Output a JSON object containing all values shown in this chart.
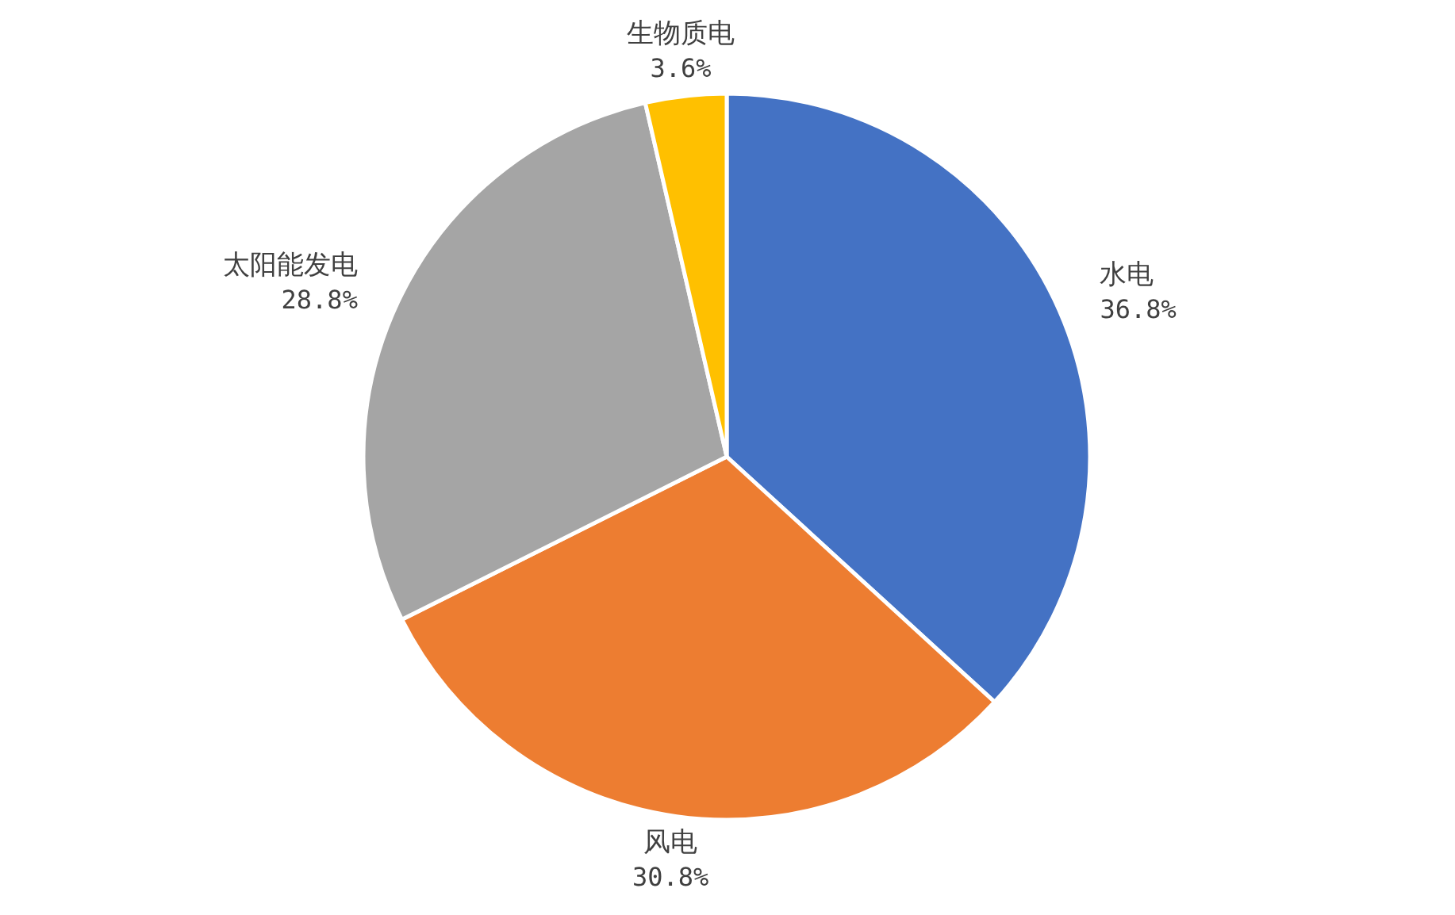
{
  "chart_data": {
    "type": "pie",
    "categories": [
      "水电",
      "风电",
      "太阳能发电",
      "生物质电"
    ],
    "values": [
      36.8,
      30.8,
      28.8,
      3.6
    ],
    "value_labels": [
      "36.8%",
      "30.8%",
      "28.8%",
      "3.6%"
    ],
    "colors": [
      "#4472c4",
      "#ed7d31",
      "#a5a5a5",
      "#ffc000"
    ]
  }
}
